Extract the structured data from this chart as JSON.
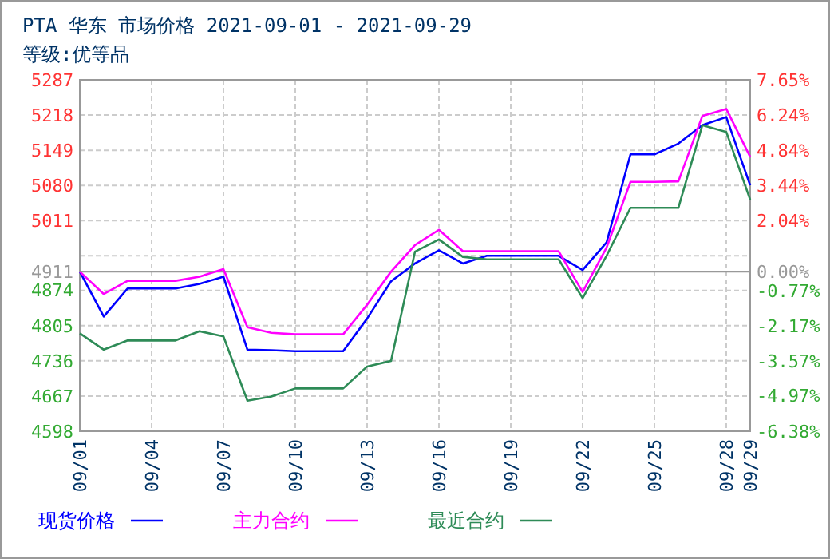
{
  "chart_data": {
    "type": "line",
    "title": "PTA 华东 市场价格 2021-09-01 - 2021-09-29",
    "subtitle": "等级:优等品",
    "x": [
      "2021-09-01",
      "2021-09-02",
      "2021-09-03",
      "2021-09-04",
      "2021-09-05",
      "2021-09-06",
      "2021-09-07",
      "2021-09-08",
      "2021-09-09",
      "2021-09-10",
      "2021-09-11",
      "2021-09-12",
      "2021-09-13",
      "2021-09-14",
      "2021-09-15",
      "2021-09-16",
      "2021-09-17",
      "2021-09-18",
      "2021-09-19",
      "2021-09-20",
      "2021-09-21",
      "2021-09-22",
      "2021-09-23",
      "2021-09-24",
      "2021-09-25",
      "2021-09-26",
      "2021-09-27",
      "2021-09-28",
      "2021-09-29"
    ],
    "series": [
      {
        "name": "现货价格",
        "color": "#0000ff",
        "values": [
          4911,
          4823,
          4878,
          4878,
          4878,
          4887,
          4901,
          4758,
          4757,
          4755,
          4755,
          4755,
          4819,
          4892,
          4927,
          4953,
          4927,
          4942,
          4942,
          4942,
          4942,
          4914,
          4968,
          5141,
          5141,
          5162,
          5198,
          5214,
          5080
        ]
      },
      {
        "name": "主力合约",
        "color": "#ff00ff",
        "values": [
          4911,
          4867,
          4893,
          4893,
          4893,
          4901,
          4916,
          4802,
          4791,
          4788,
          4788,
          4788,
          4846,
          4911,
          4963,
          4993,
          4951,
          4951,
          4951,
          4951,
          4951,
          4871,
          4958,
          5087,
          5087,
          5088,
          5216,
          5230,
          5136
        ]
      },
      {
        "name": "最近合约",
        "color": "#2e8b57",
        "values": [
          4790,
          4758,
          4776,
          4776,
          4776,
          4794,
          4784,
          4658,
          4666,
          4682,
          4682,
          4682,
          4725,
          4736,
          4950,
          4974,
          4940,
          4935,
          4935,
          4935,
          4935,
          4859,
          4942,
          5036,
          5036,
          5036,
          5198,
          5185,
          5052
        ]
      }
    ],
    "xlim": [
      "2021-09-01",
      "2021-09-29"
    ],
    "xticks": [
      {
        "value": "2021-09-01",
        "label": "09/01"
      },
      {
        "value": "2021-09-04",
        "label": "09/04"
      },
      {
        "value": "2021-09-07",
        "label": "09/07"
      },
      {
        "value": "2021-09-10",
        "label": "09/10"
      },
      {
        "value": "2021-09-13",
        "label": "09/13"
      },
      {
        "value": "2021-09-16",
        "label": "09/16"
      },
      {
        "value": "2021-09-19",
        "label": "09/19"
      },
      {
        "value": "2021-09-22",
        "label": "09/22"
      },
      {
        "value": "2021-09-25",
        "label": "09/25"
      },
      {
        "value": "2021-09-28",
        "label": "09/28"
      },
      {
        "value": "2021-09-29",
        "label": "09/29"
      }
    ],
    "ylim": [
      4598,
      5287
    ],
    "yticks": [
      4598,
      4667,
      4736,
      4805,
      4874,
      4911,
      {
        "value": 4942,
        "label": null
      },
      5011,
      5080,
      5149,
      5218,
      5287
    ],
    "y2lim": [
      -6.38,
      7.65
    ],
    "y2ticks": [
      {
        "value": -6.38,
        "label": "-6.38%"
      },
      {
        "value": -4.97,
        "label": "-4.97%"
      },
      {
        "value": -3.57,
        "label": "-3.57%"
      },
      {
        "value": -2.17,
        "label": "-2.17%"
      },
      {
        "value": -0.77,
        "label": "-0.77%"
      },
      {
        "value": 0,
        "label": "0.00%"
      },
      {
        "value": 2.04,
        "label": "2.04%"
      },
      {
        "value": 3.44,
        "label": "3.44%"
      },
      {
        "value": 4.84,
        "label": "4.84%"
      },
      {
        "value": 6.24,
        "label": "6.24%"
      },
      {
        "value": 7.65,
        "label": "7.65%"
      }
    ],
    "ref_lines": [
      {
        "axis": "y",
        "value": 4911,
        "color": "#999999"
      }
    ],
    "grid": true,
    "legend": "bottom",
    "marker": "none",
    "line_style": "solid"
  }
}
